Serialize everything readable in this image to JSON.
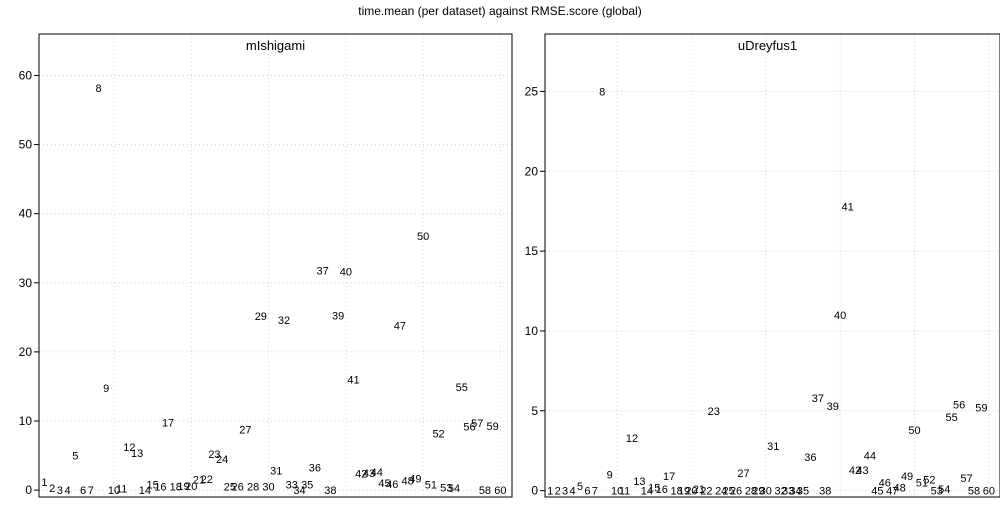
{
  "title": "time.mean (per dataset) against RMSE.score (global)",
  "chart_data": [
    {
      "type": "scatter",
      "title": "mIshigami",
      "xlabel": "",
      "ylabel": "",
      "ylim": [
        -1,
        66
      ],
      "yticks": [
        0,
        10,
        20,
        30,
        40,
        50,
        60
      ],
      "grid": true,
      "points": [
        {
          "label": "1",
          "x": 1,
          "y": 1.2
        },
        {
          "label": "2",
          "x": 2,
          "y": 0.3
        },
        {
          "label": "3",
          "x": 3,
          "y": 0
        },
        {
          "label": "4",
          "x": 4,
          "y": 0
        },
        {
          "label": "5",
          "x": 5,
          "y": 5
        },
        {
          "label": "6",
          "x": 6,
          "y": 0
        },
        {
          "label": "7",
          "x": 7,
          "y": 0
        },
        {
          "label": "8",
          "x": 8,
          "y": 58.2
        },
        {
          "label": "9",
          "x": 9,
          "y": 14.8
        },
        {
          "label": "10",
          "x": 10,
          "y": 0
        },
        {
          "label": "11",
          "x": 11,
          "y": 0.2
        },
        {
          "label": "12",
          "x": 12,
          "y": 6.2
        },
        {
          "label": "13",
          "x": 13,
          "y": 5.4
        },
        {
          "label": "14",
          "x": 14,
          "y": 0
        },
        {
          "label": "15",
          "x": 15,
          "y": 0.8
        },
        {
          "label": "16",
          "x": 16,
          "y": 0.5
        },
        {
          "label": "17",
          "x": 17,
          "y": 9.8
        },
        {
          "label": "18",
          "x": 18,
          "y": 0.5
        },
        {
          "label": "19",
          "x": 19,
          "y": 0.6
        },
        {
          "label": "20",
          "x": 20,
          "y": 0.6
        },
        {
          "label": "21",
          "x": 21,
          "y": 1.5
        },
        {
          "label": "22",
          "x": 22,
          "y": 1.6
        },
        {
          "label": "23",
          "x": 23,
          "y": 5.2
        },
        {
          "label": "24",
          "x": 24,
          "y": 4.5
        },
        {
          "label": "25",
          "x": 25,
          "y": 0.5
        },
        {
          "label": "26",
          "x": 26,
          "y": 0.5
        },
        {
          "label": "27",
          "x": 27,
          "y": 8.8
        },
        {
          "label": "28",
          "x": 28,
          "y": 0.5
        },
        {
          "label": "29",
          "x": 29,
          "y": 25.2
        },
        {
          "label": "30",
          "x": 30,
          "y": 0.5
        },
        {
          "label": "31",
          "x": 31,
          "y": 2.8
        },
        {
          "label": "32",
          "x": 32,
          "y": 24.6
        },
        {
          "label": "33",
          "x": 33,
          "y": 0.8
        },
        {
          "label": "34",
          "x": 34,
          "y": 0
        },
        {
          "label": "35",
          "x": 35,
          "y": 0.8
        },
        {
          "label": "36",
          "x": 36,
          "y": 3.3
        },
        {
          "label": "37",
          "x": 37,
          "y": 31.8
        },
        {
          "label": "38",
          "x": 38,
          "y": 0
        },
        {
          "label": "39",
          "x": 39,
          "y": 25.3
        },
        {
          "label": "40",
          "x": 40,
          "y": 31.6
        },
        {
          "label": "41",
          "x": 41,
          "y": 16
        },
        {
          "label": "42",
          "x": 42,
          "y": 2.4
        },
        {
          "label": "43",
          "x": 43,
          "y": 2.5
        },
        {
          "label": "44",
          "x": 44,
          "y": 2.6
        },
        {
          "label": "45",
          "x": 45,
          "y": 1
        },
        {
          "label": "46",
          "x": 46,
          "y": 0.9
        },
        {
          "label": "47",
          "x": 47,
          "y": 23.8
        },
        {
          "label": "48",
          "x": 48,
          "y": 1.4
        },
        {
          "label": "49",
          "x": 49,
          "y": 1.7
        },
        {
          "label": "50",
          "x": 50,
          "y": 36.8
        },
        {
          "label": "51",
          "x": 51,
          "y": 0.8
        },
        {
          "label": "52",
          "x": 52,
          "y": 8.2
        },
        {
          "label": "53",
          "x": 53,
          "y": 0.4
        },
        {
          "label": "54",
          "x": 54,
          "y": 0.3
        },
        {
          "label": "55",
          "x": 55,
          "y": 14.9
        },
        {
          "label": "56",
          "x": 56,
          "y": 9.2
        },
        {
          "label": "57",
          "x": 57,
          "y": 9.7
        },
        {
          "label": "58",
          "x": 58,
          "y": 0
        },
        {
          "label": "59",
          "x": 59,
          "y": 9.3
        },
        {
          "label": "60",
          "x": 60,
          "y": 0
        }
      ]
    },
    {
      "type": "scatter",
      "title": "uDreyfus1",
      "xlabel": "",
      "ylabel": "",
      "ylim": [
        -0.4,
        28.6
      ],
      "yticks": [
        0,
        5,
        10,
        15,
        20,
        25
      ],
      "grid": true,
      "points": [
        {
          "label": "1",
          "x": 1,
          "y": 0
        },
        {
          "label": "2",
          "x": 2,
          "y": 0
        },
        {
          "label": "3",
          "x": 3,
          "y": 0
        },
        {
          "label": "4",
          "x": 4,
          "y": 0
        },
        {
          "label": "5",
          "x": 5,
          "y": 0.3
        },
        {
          "label": "6",
          "x": 6,
          "y": 0
        },
        {
          "label": "7",
          "x": 7,
          "y": 0
        },
        {
          "label": "8",
          "x": 8,
          "y": 25
        },
        {
          "label": "9",
          "x": 9,
          "y": 1
        },
        {
          "label": "10",
          "x": 10,
          "y": 0
        },
        {
          "label": "11",
          "x": 11,
          "y": 0
        },
        {
          "label": "12",
          "x": 12,
          "y": 3.3
        },
        {
          "label": "13",
          "x": 13,
          "y": 0.6
        },
        {
          "label": "14",
          "x": 14,
          "y": 0
        },
        {
          "label": "15",
          "x": 15,
          "y": 0.2
        },
        {
          "label": "16",
          "x": 16,
          "y": 0.1
        },
        {
          "label": "17",
          "x": 17,
          "y": 0.9
        },
        {
          "label": "18",
          "x": 18,
          "y": 0
        },
        {
          "label": "19",
          "x": 19,
          "y": 0
        },
        {
          "label": "20",
          "x": 20,
          "y": 0
        },
        {
          "label": "21",
          "x": 21,
          "y": 0.1
        },
        {
          "label": "22",
          "x": 22,
          "y": 0
        },
        {
          "label": "23",
          "x": 23,
          "y": 5
        },
        {
          "label": "24",
          "x": 24,
          "y": 0
        },
        {
          "label": "25",
          "x": 25,
          "y": 0
        },
        {
          "label": "26",
          "x": 26,
          "y": 0
        },
        {
          "label": "27",
          "x": 27,
          "y": 1.1
        },
        {
          "label": "28",
          "x": 28,
          "y": 0
        },
        {
          "label": "29",
          "x": 29,
          "y": 0
        },
        {
          "label": "30",
          "x": 30,
          "y": 0
        },
        {
          "label": "31",
          "x": 31,
          "y": 2.8
        },
        {
          "label": "32",
          "x": 32,
          "y": 0
        },
        {
          "label": "33",
          "x": 33,
          "y": 0
        },
        {
          "label": "34",
          "x": 34,
          "y": 0
        },
        {
          "label": "35",
          "x": 35,
          "y": 0
        },
        {
          "label": "36",
          "x": 36,
          "y": 2.1
        },
        {
          "label": "37",
          "x": 37,
          "y": 5.8
        },
        {
          "label": "38",
          "x": 38,
          "y": 0
        },
        {
          "label": "39",
          "x": 39,
          "y": 5.3
        },
        {
          "label": "40",
          "x": 40,
          "y": 11
        },
        {
          "label": "41",
          "x": 41,
          "y": 17.8
        },
        {
          "label": "42",
          "x": 42,
          "y": 1.3
        },
        {
          "label": "43",
          "x": 43,
          "y": 1.3
        },
        {
          "label": "44",
          "x": 44,
          "y": 2.2
        },
        {
          "label": "45",
          "x": 45,
          "y": 0
        },
        {
          "label": "46",
          "x": 46,
          "y": 0.5
        },
        {
          "label": "47",
          "x": 47,
          "y": 0
        },
        {
          "label": "48",
          "x": 48,
          "y": 0.2
        },
        {
          "label": "49",
          "x": 49,
          "y": 0.9
        },
        {
          "label": "50",
          "x": 50,
          "y": 3.8
        },
        {
          "label": "51",
          "x": 51,
          "y": 0.5
        },
        {
          "label": "52",
          "x": 52,
          "y": 0.7
        },
        {
          "label": "53",
          "x": 53,
          "y": 0
        },
        {
          "label": "54",
          "x": 54,
          "y": 0.1
        },
        {
          "label": "55",
          "x": 55,
          "y": 4.6
        },
        {
          "label": "56",
          "x": 56,
          "y": 5.4
        },
        {
          "label": "57",
          "x": 57,
          "y": 0.8
        },
        {
          "label": "58",
          "x": 58,
          "y": 0
        },
        {
          "label": "59",
          "x": 59,
          "y": 5.2
        },
        {
          "label": "60",
          "x": 60,
          "y": 0
        }
      ]
    }
  ]
}
